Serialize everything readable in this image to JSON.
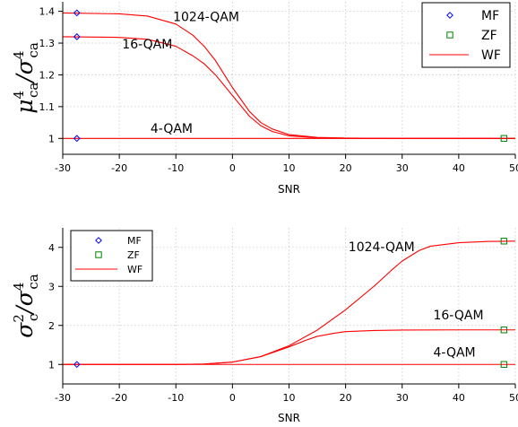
{
  "chart_data": [
    {
      "type": "line",
      "xlabel": "SNR",
      "ylabel": {
        "num_base": "μ",
        "num_sub": "ca",
        "num_sup": "4",
        "slash": "/",
        "den_base": "σ",
        "den_sub": "ca",
        "den_sup": "4"
      },
      "xlim": [
        -30,
        50
      ],
      "ylim": [
        0.95,
        1.43
      ],
      "xticks": [
        -30,
        -20,
        -10,
        0,
        10,
        20,
        30,
        40,
        50
      ],
      "yticks": [
        1,
        1.1,
        1.2,
        1.3,
        1.4
      ],
      "ytick_labels": [
        "1",
        "1.1",
        "1.2",
        "1.3",
        "1.4"
      ],
      "grid": true,
      "legend": {
        "placement": "top-right",
        "entries": [
          {
            "label": "MF",
            "marker": "diamond",
            "color": "#0000ff"
          },
          {
            "label": "ZF",
            "marker": "square",
            "color": "#008000"
          },
          {
            "label": "WF",
            "marker": "line",
            "color": "#ff0000"
          }
        ]
      },
      "series": [
        {
          "name": "1024-QAM",
          "curve": "WF",
          "color": "#ff0000",
          "x": [
            -30,
            -20,
            -15,
            -10,
            -7,
            -5,
            -3,
            0,
            3,
            5,
            7,
            10,
            15,
            20,
            30,
            50
          ],
          "y": [
            1.395,
            1.392,
            1.385,
            1.36,
            1.325,
            1.29,
            1.245,
            1.16,
            1.085,
            1.05,
            1.03,
            1.012,
            1.003,
            1.001,
            1.0,
            1.0
          ]
        },
        {
          "name": "16-QAM",
          "curve": "WF",
          "color": "#ff0000",
          "x": [
            -30,
            -20,
            -15,
            -10,
            -7,
            -5,
            -3,
            0,
            3,
            5,
            7,
            10,
            15,
            20,
            30,
            50
          ],
          "y": [
            1.32,
            1.318,
            1.312,
            1.29,
            1.26,
            1.235,
            1.2,
            1.135,
            1.07,
            1.04,
            1.022,
            1.008,
            1.002,
            1.0,
            1.0,
            1.0
          ]
        },
        {
          "name": "4-QAM",
          "curve": "WF",
          "color": "#ff0000",
          "x": [
            -30,
            50
          ],
          "y": [
            1.0,
            1.0
          ]
        }
      ],
      "markers": {
        "MF": [
          {
            "x": -27.5,
            "y": 1.395
          },
          {
            "x": -27.5,
            "y": 1.32
          },
          {
            "x": -27.5,
            "y": 1.0
          }
        ],
        "ZF": [
          {
            "x": 48,
            "y": 1.0
          }
        ]
      },
      "annotations": [
        {
          "text": "1024-QAM",
          "x": -10.5,
          "y": 1.37
        },
        {
          "text": "16-QAM",
          "x": -19.5,
          "y": 1.283
        },
        {
          "text": "4-QAM",
          "x": -14.5,
          "y": 1.018
        }
      ]
    },
    {
      "type": "line",
      "xlabel": "SNR",
      "ylabel": {
        "num_base": "σ",
        "num_sub": "c",
        "num_sup": "2",
        "slash": "/",
        "den_base": "σ",
        "den_sub": "ca",
        "den_sup": "4"
      },
      "xlim": [
        -30,
        50
      ],
      "ylim": [
        0.5,
        4.5
      ],
      "xticks": [
        -30,
        -20,
        -10,
        0,
        10,
        20,
        30,
        40,
        50
      ],
      "yticks": [
        1,
        2,
        3,
        4
      ],
      "ytick_labels": [
        "1",
        "2",
        "3",
        "4"
      ],
      "grid": true,
      "legend": {
        "placement": "top-left",
        "entries": [
          {
            "label": "MF",
            "marker": "diamond",
            "color": "#0000ff"
          },
          {
            "label": "ZF",
            "marker": "square",
            "color": "#008000"
          },
          {
            "label": "WF",
            "marker": "line",
            "color": "#ff0000"
          }
        ]
      },
      "series": [
        {
          "name": "1024-QAM",
          "curve": "WF",
          "color": "#ff0000",
          "x": [
            -30,
            -10,
            -5,
            0,
            5,
            10,
            15,
            20,
            25,
            28,
            30,
            33,
            35,
            40,
            45,
            50
          ],
          "y": [
            1.0,
            1.0,
            1.01,
            1.06,
            1.2,
            1.48,
            1.88,
            2.4,
            3.0,
            3.4,
            3.65,
            3.92,
            4.03,
            4.12,
            4.15,
            4.16
          ]
        },
        {
          "name": "16-QAM",
          "curve": "WF",
          "color": "#ff0000",
          "x": [
            -30,
            -10,
            -5,
            0,
            5,
            10,
            13,
            15,
            18,
            20,
            25,
            30,
            40,
            50
          ],
          "y": [
            1.0,
            1.0,
            1.01,
            1.06,
            1.2,
            1.45,
            1.62,
            1.72,
            1.8,
            1.84,
            1.87,
            1.88,
            1.885,
            1.885
          ]
        },
        {
          "name": "4-QAM",
          "curve": "WF",
          "color": "#ff0000",
          "x": [
            -30,
            50
          ],
          "y": [
            1.0,
            1.0
          ]
        }
      ],
      "markers": {
        "MF": [
          {
            "x": -27.5,
            "y": 1.0
          }
        ],
        "ZF": [
          {
            "x": 48,
            "y": 4.16
          },
          {
            "x": 48,
            "y": 1.885
          },
          {
            "x": 48,
            "y": 1.0
          }
        ]
      },
      "annotations": [
        {
          "text": "1024-QAM",
          "x": 20.5,
          "y": 3.9
        },
        {
          "text": "16-QAM",
          "x": 35.5,
          "y": 2.15
        },
        {
          "text": "4-QAM",
          "x": 35.5,
          "y": 1.2
        }
      ]
    }
  ]
}
